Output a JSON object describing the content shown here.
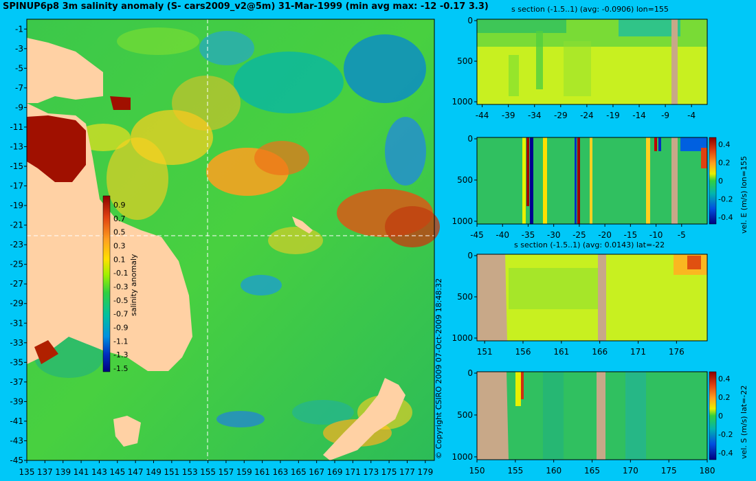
{
  "title": "SPINUP6p8 3m salinity anomaly (S- cars2009_v2@5m) 31-Mar-1999 (min avg max: -12 -0.17 3.3)",
  "copyright": "© Copyright CSIRO 2009   07-Oct-2009 18:48:32",
  "colors": {
    "background": "#00c8f8",
    "land": "#ffd1a4",
    "land_section": "#c8a888",
    "guide": "#ffffff"
  },
  "chart_data": [
    {
      "type": "heatmap",
      "name": "map",
      "xlim": [
        135,
        180
      ],
      "ylim": [
        -45,
        0
      ],
      "xticks": [
        "135",
        "137",
        "139",
        "141",
        "143",
        "145",
        "147",
        "149",
        "151",
        "153",
        "155",
        "157",
        "159",
        "161",
        "163",
        "165",
        "167",
        "169",
        "171",
        "173",
        "175",
        "177",
        "179"
      ],
      "yticks": [
        "-1",
        "-3",
        "-5",
        "-7",
        "-9",
        "-11",
        "-13",
        "-15",
        "-17",
        "-19",
        "-21",
        "-23",
        "-25",
        "-27",
        "-29",
        "-31",
        "-33",
        "-35",
        "-37",
        "-39",
        "-41",
        "-43",
        "-45"
      ],
      "section_lon": 155,
      "section_lat": -22,
      "colorbar": {
        "label": "salinity anomaly",
        "ticks": [
          "0.9",
          "0.7",
          "0.5",
          "0.3",
          "0.1",
          "-0.1",
          "-0.3",
          "-0.5",
          "-0.7",
          "-0.9",
          "-1.1",
          "-1.3",
          "-1.5"
        ]
      }
    },
    {
      "type": "heatmap",
      "name": "s-section-lon",
      "title": "s section (-1.5..1) (avg: -0.0906) lon=155",
      "xlim": [
        -45,
        0
      ],
      "xticks": [
        "-44",
        "-39",
        "-34",
        "-29",
        "-24",
        "-19",
        "-14",
        "-9",
        "-4"
      ],
      "yticks": [
        "0",
        "500",
        "1000"
      ],
      "ylim": [
        0,
        1050
      ]
    },
    {
      "type": "heatmap",
      "name": "vel-e-section",
      "xlim": [
        -45,
        0
      ],
      "xticks": [
        "-45",
        "-40",
        "-35",
        "-30",
        "-25",
        "-20",
        "-15",
        "-10",
        "-5"
      ],
      "yticks": [
        "0",
        "500",
        "1000"
      ],
      "colorbar": {
        "label": "vel. E (m/s) lon=155",
        "ticks": [
          "0.4",
          "0.2",
          "0",
          "-0.2",
          "-0.4"
        ]
      }
    },
    {
      "type": "heatmap",
      "name": "s-section-lat",
      "title": "s section (-1.5..1) (avg: 0.0143) lat=-22",
      "xlim": [
        150,
        180
      ],
      "xticks": [
        "151",
        "156",
        "161",
        "166",
        "171",
        "176"
      ],
      "yticks": [
        "0",
        "500",
        "1000"
      ]
    },
    {
      "type": "heatmap",
      "name": "vel-s-section",
      "xlim": [
        150,
        180
      ],
      "xticks": [
        "150",
        "155",
        "160",
        "165",
        "170",
        "175",
        "180"
      ],
      "yticks": [
        "0",
        "500",
        "1000"
      ],
      "colorbar": {
        "label": "vel. S (m/s) lat=-22",
        "ticks": [
          "0.4",
          "0.2",
          "0",
          "-0.2",
          "-0.4"
        ]
      }
    }
  ]
}
